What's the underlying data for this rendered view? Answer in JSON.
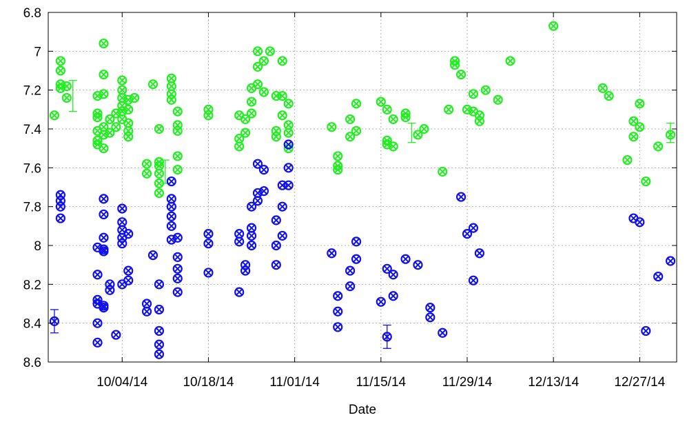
{
  "chart_data": {
    "type": "scatter",
    "title": "",
    "xlabel": "Date",
    "ylabel": "",
    "y_axis_inverted": true,
    "ylim": [
      6.8,
      8.6
    ],
    "xlim": [
      "2014-09-22",
      "2015-01-02"
    ],
    "grid": true,
    "x_ticks": [
      {
        "date": "2014-10-04",
        "label": "10/04/14"
      },
      {
        "date": "2014-10-18",
        "label": "10/18/14"
      },
      {
        "date": "2014-11-01",
        "label": "11/01/14"
      },
      {
        "date": "2014-11-15",
        "label": "11/15/14"
      },
      {
        "date": "2014-11-29",
        "label": "11/29/14"
      },
      {
        "date": "2014-12-13",
        "label": "12/13/14"
      },
      {
        "date": "2014-12-27",
        "label": "12/27/14"
      }
    ],
    "y_ticks": [
      {
        "value": 6.8,
        "label": "6.8"
      },
      {
        "value": 7.0,
        "label": "7"
      },
      {
        "value": 7.2,
        "label": "7.2"
      },
      {
        "value": 7.4,
        "label": "7.4"
      },
      {
        "value": 7.6,
        "label": "7.6"
      },
      {
        "value": 7.8,
        "label": "7.8"
      },
      {
        "value": 8.0,
        "label": "8"
      },
      {
        "value": 8.2,
        "label": "8.2"
      },
      {
        "value": 8.4,
        "label": "8.4"
      },
      {
        "value": 8.6,
        "label": "8.6"
      }
    ],
    "series": [
      {
        "color": "#22ee22",
        "error_bars": [
          {
            "x": "2014-09-26",
            "y": 7.23,
            "err": 0.08
          },
          {
            "x": "2014-10-11",
            "y": 7.62,
            "err": 0.06
          },
          {
            "x": "2014-11-20",
            "y": 7.42,
            "err": 0.05
          },
          {
            "x": "2015-01-01",
            "y": 7.42,
            "err": 0.05
          }
        ],
        "points": [
          {
            "x": "2014-09-23",
            "y": 7.33
          },
          {
            "x": "2014-09-24",
            "y": 7.05
          },
          {
            "x": "2014-09-24",
            "y": 7.1
          },
          {
            "x": "2014-09-24",
            "y": 7.17
          },
          {
            "x": "2014-09-24",
            "y": 7.19
          },
          {
            "x": "2014-09-25",
            "y": 7.18
          },
          {
            "x": "2014-09-25",
            "y": 7.24
          },
          {
            "x": "2014-09-30",
            "y": 7.23
          },
          {
            "x": "2014-09-30",
            "y": 7.32
          },
          {
            "x": "2014-09-30",
            "y": 7.34
          },
          {
            "x": "2014-09-30",
            "y": 7.41
          },
          {
            "x": "2014-09-30",
            "y": 7.46
          },
          {
            "x": "2014-09-30",
            "y": 7.48
          },
          {
            "x": "2014-10-01",
            "y": 7.39
          },
          {
            "x": "2014-10-01",
            "y": 7.43
          },
          {
            "x": "2014-10-01",
            "y": 6.96
          },
          {
            "x": "2014-10-01",
            "y": 7.12
          },
          {
            "x": "2014-10-01",
            "y": 7.22
          },
          {
            "x": "2014-10-01",
            "y": 7.5
          },
          {
            "x": "2014-10-02",
            "y": 7.35
          },
          {
            "x": "2014-10-02",
            "y": 7.42
          },
          {
            "x": "2014-10-03",
            "y": 7.39
          },
          {
            "x": "2014-10-03",
            "y": 7.32
          },
          {
            "x": "2014-10-04",
            "y": 7.31
          },
          {
            "x": "2014-10-04",
            "y": 7.15
          },
          {
            "x": "2014-10-04",
            "y": 7.2
          },
          {
            "x": "2014-10-04",
            "y": 7.24
          },
          {
            "x": "2014-10-04",
            "y": 7.28
          },
          {
            "x": "2014-10-04",
            "y": 7.35
          },
          {
            "x": "2014-10-05",
            "y": 7.3
          },
          {
            "x": "2014-10-05",
            "y": 7.37
          },
          {
            "x": "2014-10-05",
            "y": 7.41
          },
          {
            "x": "2014-10-05",
            "y": 7.44
          },
          {
            "x": "2014-10-05",
            "y": 7.25
          },
          {
            "x": "2014-10-06",
            "y": 7.24
          },
          {
            "x": "2014-10-09",
            "y": 7.17
          },
          {
            "x": "2014-10-08",
            "y": 7.58
          },
          {
            "x": "2014-10-08",
            "y": 7.63
          },
          {
            "x": "2014-10-10",
            "y": 7.4
          },
          {
            "x": "2014-10-10",
            "y": 7.57
          },
          {
            "x": "2014-10-10",
            "y": 7.59
          },
          {
            "x": "2014-10-10",
            "y": 7.63
          },
          {
            "x": "2014-10-10",
            "y": 7.68
          },
          {
            "x": "2014-10-10",
            "y": 7.73
          },
          {
            "x": "2014-10-12",
            "y": 7.14
          },
          {
            "x": "2014-10-12",
            "y": 7.18
          },
          {
            "x": "2014-10-12",
            "y": 7.22
          },
          {
            "x": "2014-10-12",
            "y": 7.25
          },
          {
            "x": "2014-10-13",
            "y": 7.31
          },
          {
            "x": "2014-10-13",
            "y": 7.38
          },
          {
            "x": "2014-10-13",
            "y": 7.41
          },
          {
            "x": "2014-10-13",
            "y": 7.54
          },
          {
            "x": "2014-10-13",
            "y": 7.61
          },
          {
            "x": "2014-10-18",
            "y": 7.3
          },
          {
            "x": "2014-10-18",
            "y": 7.33
          },
          {
            "x": "2014-10-23",
            "y": 7.33
          },
          {
            "x": "2014-10-23",
            "y": 7.45
          },
          {
            "x": "2014-10-23",
            "y": 7.49
          },
          {
            "x": "2014-10-24",
            "y": 7.42
          },
          {
            "x": "2014-10-24",
            "y": 7.35
          },
          {
            "x": "2014-10-25",
            "y": 7.32
          },
          {
            "x": "2014-10-25",
            "y": 7.26
          },
          {
            "x": "2014-10-25",
            "y": 7.19
          },
          {
            "x": "2014-10-26",
            "y": 7.0
          },
          {
            "x": "2014-10-26",
            "y": 7.08
          },
          {
            "x": "2014-10-26",
            "y": 7.17
          },
          {
            "x": "2014-10-27",
            "y": 7.05
          },
          {
            "x": "2014-10-27",
            "y": 7.21
          },
          {
            "x": "2014-10-28",
            "y": 7.0
          },
          {
            "x": "2014-10-29",
            "y": 7.23
          },
          {
            "x": "2014-10-29",
            "y": 7.41
          },
          {
            "x": "2014-10-29",
            "y": 7.44
          },
          {
            "x": "2014-10-30",
            "y": 7.05
          },
          {
            "x": "2014-10-30",
            "y": 7.23
          },
          {
            "x": "2014-10-30",
            "y": 7.33
          },
          {
            "x": "2014-10-31",
            "y": 7.27
          },
          {
            "x": "2014-10-31",
            "y": 7.38
          },
          {
            "x": "2014-10-31",
            "y": 7.42
          },
          {
            "x": "2014-10-31",
            "y": 7.5
          },
          {
            "x": "2014-11-07",
            "y": 7.39
          },
          {
            "x": "2014-11-08",
            "y": 7.54
          },
          {
            "x": "2014-11-08",
            "y": 7.59
          },
          {
            "x": "2014-11-08",
            "y": 7.61
          },
          {
            "x": "2014-11-10",
            "y": 7.35
          },
          {
            "x": "2014-11-10",
            "y": 7.44
          },
          {
            "x": "2014-11-11",
            "y": 7.27
          },
          {
            "x": "2014-11-11",
            "y": 7.41
          },
          {
            "x": "2014-11-15",
            "y": 7.26
          },
          {
            "x": "2014-11-16",
            "y": 7.3
          },
          {
            "x": "2014-11-16",
            "y": 7.46
          },
          {
            "x": "2014-11-16",
            "y": 7.48
          },
          {
            "x": "2014-11-17",
            "y": 7.35
          },
          {
            "x": "2014-11-17",
            "y": 7.49
          },
          {
            "x": "2014-11-19",
            "y": 7.32
          },
          {
            "x": "2014-11-19",
            "y": 7.34
          },
          {
            "x": "2014-11-21",
            "y": 7.43
          },
          {
            "x": "2014-11-22",
            "y": 7.4
          },
          {
            "x": "2014-11-25",
            "y": 7.62
          },
          {
            "x": "2014-11-26",
            "y": 7.3
          },
          {
            "x": "2014-11-27",
            "y": 7.05
          },
          {
            "x": "2014-11-27",
            "y": 7.07
          },
          {
            "x": "2014-11-28",
            "y": 7.12
          },
          {
            "x": "2014-11-29",
            "y": 7.3
          },
          {
            "x": "2014-11-30",
            "y": 7.22
          },
          {
            "x": "2014-11-30",
            "y": 7.31
          },
          {
            "x": "2014-12-01",
            "y": 7.33
          },
          {
            "x": "2014-12-01",
            "y": 7.36
          },
          {
            "x": "2014-12-02",
            "y": 7.2
          },
          {
            "x": "2014-12-04",
            "y": 7.25
          },
          {
            "x": "2014-12-06",
            "y": 7.05
          },
          {
            "x": "2014-12-13",
            "y": 6.87
          },
          {
            "x": "2014-12-21",
            "y": 7.19
          },
          {
            "x": "2014-12-22",
            "y": 7.23
          },
          {
            "x": "2014-12-25",
            "y": 7.56
          },
          {
            "x": "2014-12-26",
            "y": 7.44
          },
          {
            "x": "2014-12-26",
            "y": 7.36
          },
          {
            "x": "2014-12-27",
            "y": 7.39
          },
          {
            "x": "2014-12-27",
            "y": 7.27
          },
          {
            "x": "2014-12-28",
            "y": 7.67
          },
          {
            "x": "2014-12-30",
            "y": 7.49
          },
          {
            "x": "2015-01-01",
            "y": 7.43
          }
        ]
      },
      {
        "color": "#1010ee",
        "error_bars": [
          {
            "x": "2014-09-23",
            "y": 8.39,
            "err": 0.06
          },
          {
            "x": "2014-11-16",
            "y": 8.47,
            "err": 0.06
          }
        ],
        "points": [
          {
            "x": "2014-09-23",
            "y": 8.39
          },
          {
            "x": "2014-09-24",
            "y": 7.74
          },
          {
            "x": "2014-09-24",
            "y": 7.77
          },
          {
            "x": "2014-09-24",
            "y": 7.8
          },
          {
            "x": "2014-09-24",
            "y": 7.86
          },
          {
            "x": "2014-09-30",
            "y": 8.01
          },
          {
            "x": "2014-09-30",
            "y": 8.15
          },
          {
            "x": "2014-09-30",
            "y": 8.28
          },
          {
            "x": "2014-09-30",
            "y": 8.3
          },
          {
            "x": "2014-09-30",
            "y": 8.4
          },
          {
            "x": "2014-09-30",
            "y": 8.5
          },
          {
            "x": "2014-10-01",
            "y": 8.02
          },
          {
            "x": "2014-10-01",
            "y": 8.31
          },
          {
            "x": "2014-10-01",
            "y": 7.76
          },
          {
            "x": "2014-10-01",
            "y": 7.84
          },
          {
            "x": "2014-10-01",
            "y": 7.96
          },
          {
            "x": "2014-10-01",
            "y": 8.03
          },
          {
            "x": "2014-10-01",
            "y": 8.32
          },
          {
            "x": "2014-10-02",
            "y": 8.2
          },
          {
            "x": "2014-10-02",
            "y": 8.23
          },
          {
            "x": "2014-10-03",
            "y": 8.46
          },
          {
            "x": "2014-10-04",
            "y": 7.81
          },
          {
            "x": "2014-10-04",
            "y": 7.88
          },
          {
            "x": "2014-10-04",
            "y": 7.92
          },
          {
            "x": "2014-10-04",
            "y": 7.96
          },
          {
            "x": "2014-10-04",
            "y": 7.99
          },
          {
            "x": "2014-10-04",
            "y": 8.2
          },
          {
            "x": "2014-10-05",
            "y": 8.18
          },
          {
            "x": "2014-10-05",
            "y": 8.13
          },
          {
            "x": "2014-10-05",
            "y": 7.94
          },
          {
            "x": "2014-10-08",
            "y": 8.3
          },
          {
            "x": "2014-10-08",
            "y": 8.34
          },
          {
            "x": "2014-10-09",
            "y": 8.05
          },
          {
            "x": "2014-10-10",
            "y": 8.2
          },
          {
            "x": "2014-10-10",
            "y": 8.33
          },
          {
            "x": "2014-10-10",
            "y": 8.44
          },
          {
            "x": "2014-10-10",
            "y": 8.51
          },
          {
            "x": "2014-10-10",
            "y": 8.56
          },
          {
            "x": "2014-10-12",
            "y": 7.67
          },
          {
            "x": "2014-10-12",
            "y": 7.76
          },
          {
            "x": "2014-10-12",
            "y": 7.8
          },
          {
            "x": "2014-10-12",
            "y": 7.85
          },
          {
            "x": "2014-10-12",
            "y": 7.9
          },
          {
            "x": "2014-10-12",
            "y": 7.97
          },
          {
            "x": "2014-10-13",
            "y": 7.96
          },
          {
            "x": "2014-10-13",
            "y": 8.06
          },
          {
            "x": "2014-10-13",
            "y": 8.12
          },
          {
            "x": "2014-10-13",
            "y": 8.17
          },
          {
            "x": "2014-10-13",
            "y": 8.24
          },
          {
            "x": "2014-10-18",
            "y": 7.94
          },
          {
            "x": "2014-10-18",
            "y": 7.99
          },
          {
            "x": "2014-10-18",
            "y": 8.14
          },
          {
            "x": "2014-10-23",
            "y": 7.94
          },
          {
            "x": "2014-10-23",
            "y": 7.98
          },
          {
            "x": "2014-10-23",
            "y": 8.24
          },
          {
            "x": "2014-10-24",
            "y": 8.1
          },
          {
            "x": "2014-10-24",
            "y": 8.13
          },
          {
            "x": "2014-10-25",
            "y": 7.8
          },
          {
            "x": "2014-10-25",
            "y": 7.91
          },
          {
            "x": "2014-10-25",
            "y": 7.95
          },
          {
            "x": "2014-10-25",
            "y": 8.0
          },
          {
            "x": "2014-10-26",
            "y": 7.58
          },
          {
            "x": "2014-10-26",
            "y": 7.73
          },
          {
            "x": "2014-10-26",
            "y": 7.77
          },
          {
            "x": "2014-10-27",
            "y": 7.61
          },
          {
            "x": "2014-10-27",
            "y": 7.72
          },
          {
            "x": "2014-10-29",
            "y": 7.87
          },
          {
            "x": "2014-10-29",
            "y": 8.0
          },
          {
            "x": "2014-10-29",
            "y": 8.1
          },
          {
            "x": "2014-10-30",
            "y": 7.69
          },
          {
            "x": "2014-10-30",
            "y": 7.8
          },
          {
            "x": "2014-10-30",
            "y": 7.95
          },
          {
            "x": "2014-10-31",
            "y": 7.48
          },
          {
            "x": "2014-10-31",
            "y": 7.6
          },
          {
            "x": "2014-10-31",
            "y": 7.69
          },
          {
            "x": "2014-11-07",
            "y": 8.04
          },
          {
            "x": "2014-11-08",
            "y": 8.26
          },
          {
            "x": "2014-11-08",
            "y": 8.34
          },
          {
            "x": "2014-11-08",
            "y": 8.42
          },
          {
            "x": "2014-11-10",
            "y": 8.13
          },
          {
            "x": "2014-11-10",
            "y": 8.21
          },
          {
            "x": "2014-11-11",
            "y": 7.98
          },
          {
            "x": "2014-11-11",
            "y": 8.07
          },
          {
            "x": "2014-11-15",
            "y": 8.29
          },
          {
            "x": "2014-11-16",
            "y": 8.12
          },
          {
            "x": "2014-11-16",
            "y": 8.47
          },
          {
            "x": "2014-11-17",
            "y": 8.15
          },
          {
            "x": "2014-11-17",
            "y": 8.26
          },
          {
            "x": "2014-11-19",
            "y": 8.07
          },
          {
            "x": "2014-11-21",
            "y": 8.1
          },
          {
            "x": "2014-11-23",
            "y": 8.32
          },
          {
            "x": "2014-11-23",
            "y": 8.37
          },
          {
            "x": "2014-11-25",
            "y": 8.45
          },
          {
            "x": "2014-11-28",
            "y": 7.75
          },
          {
            "x": "2014-11-29",
            "y": 7.94
          },
          {
            "x": "2014-11-30",
            "y": 7.91
          },
          {
            "x": "2014-11-30",
            "y": 8.18
          },
          {
            "x": "2014-12-01",
            "y": 8.04
          },
          {
            "x": "2014-12-26",
            "y": 7.86
          },
          {
            "x": "2014-12-27",
            "y": 7.88
          },
          {
            "x": "2014-12-28",
            "y": 8.44
          },
          {
            "x": "2014-12-30",
            "y": 8.16
          },
          {
            "x": "2015-01-01",
            "y": 8.08
          }
        ]
      }
    ]
  }
}
